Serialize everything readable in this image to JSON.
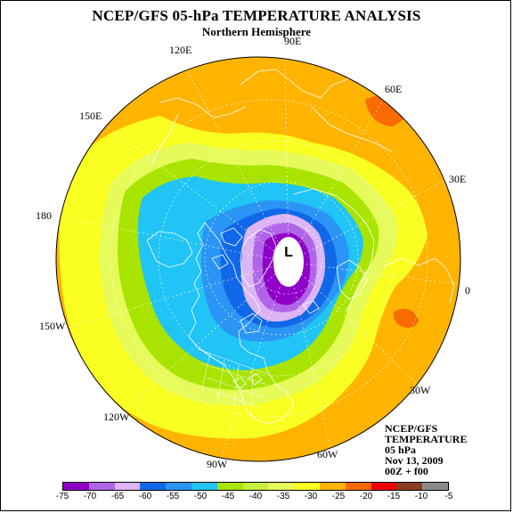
{
  "title": "NCEP/GFS 05-hPa TEMPERATURE ANALYSIS",
  "subtitle": "Northern Hemisphere",
  "info": {
    "line1": "NCEP/GFS",
    "line2": "TEMPERATURE",
    "line3": "05 hPa",
    "line4": "Nov 13, 2009",
    "line5": "00Z + f00"
  },
  "low_marker": "L",
  "longitude_labels": [
    "90E",
    "60E",
    "30E",
    "0",
    "30W",
    "60W",
    "90W",
    "120W",
    "150W",
    "180",
    "150E",
    "120E"
  ],
  "colorbar": {
    "ticks": [
      "-75",
      "-70",
      "-65",
      "-60",
      "-55",
      "-50",
      "-45",
      "-40",
      "-35",
      "-30",
      "-25",
      "-20",
      "-15",
      "-10",
      "-5"
    ],
    "colors": [
      "#8f00c8",
      "#b065e8",
      "#dbb5f5",
      "#1068e8",
      "#2a95f5",
      "#20c4f5",
      "#a8e400",
      "#c6f03a",
      "#e6fb5a",
      "#f9ff20",
      "#ffb400",
      "#f96a00",
      "#f50000",
      "#8c3c20",
      "#8b8b8b"
    ]
  },
  "colors": {
    "coastline": "#ffffff",
    "background": "#ffffff",
    "low_center": "#ffffff"
  }
}
